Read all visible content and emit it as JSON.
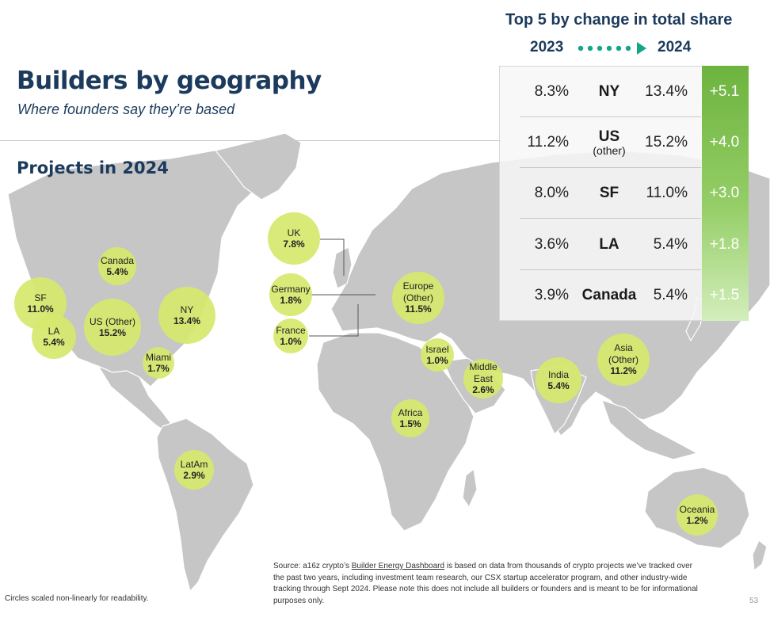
{
  "header": {
    "title": "Builders by geography",
    "subtitle": "Where founders say they’re based",
    "section_title": "Projects in 2024"
  },
  "colors": {
    "title": "#1b3a5c",
    "bubble": "#d6e86e",
    "land": "#c6c6c6",
    "change_top": "#6db33f",
    "change_bottom": "#d3eebc",
    "arrow": "#17a589"
  },
  "chart_data": [
    {
      "type": "bubble-map",
      "title": "Projects in 2024",
      "unit": "%",
      "points": [
        {
          "name": "Canada",
          "value": 5.4,
          "value_label": "5.4%"
        },
        {
          "name": "SF",
          "value": 11.0,
          "value_label": "11.0%"
        },
        {
          "name": "LA",
          "value": 5.4,
          "value_label": "5.4%"
        },
        {
          "name": "US (Other)",
          "value": 15.2,
          "value_label": "15.2%"
        },
        {
          "name": "NY",
          "value": 13.4,
          "value_label": "13.4%"
        },
        {
          "name": "Miami",
          "value": 1.7,
          "value_label": "1.7%"
        },
        {
          "name": "UK",
          "value": 7.8,
          "value_label": "7.8%"
        },
        {
          "name": "Germany",
          "value": 1.8,
          "value_label": "1.8%"
        },
        {
          "name": "France",
          "value": 1.0,
          "value_label": "1.0%"
        },
        {
          "name": "Europe (Other)",
          "value": 11.5,
          "value_label": "11.5%"
        },
        {
          "name": "Israel",
          "value": 1.0,
          "value_label": "1.0%"
        },
        {
          "name": "Middle East",
          "value": 2.6,
          "value_label": "2.6%"
        },
        {
          "name": "India",
          "value": 5.4,
          "value_label": "5.4%"
        },
        {
          "name": "Asia (Other)",
          "value": 11.2,
          "value_label": "11.2%"
        },
        {
          "name": "Africa",
          "value": 1.5,
          "value_label": "1.5%"
        },
        {
          "name": "LatAm",
          "value": 2.9,
          "value_label": "2.9%"
        },
        {
          "name": "Oceania",
          "value": 1.2,
          "value_label": "1.2%"
        }
      ]
    },
    {
      "type": "table",
      "title": "Top 5 by change in total share",
      "columns": [
        "2023",
        "2024"
      ],
      "rows": [
        {
          "city": "NY",
          "city_sub": "",
          "y2023": "8.3%",
          "y2024": "13.4%",
          "change": "+5.1"
        },
        {
          "city": "US",
          "city_sub": "(other)",
          "y2023": "11.2%",
          "y2024": "15.2%",
          "change": "+4.0"
        },
        {
          "city": "SF",
          "city_sub": "",
          "y2023": "8.0%",
          "y2024": "11.0%",
          "change": "+3.0"
        },
        {
          "city": "LA",
          "city_sub": "",
          "y2023": "3.6%",
          "y2024": "5.4%",
          "change": "+1.8"
        },
        {
          "city": "Canada",
          "city_sub": "",
          "y2023": "3.9%",
          "y2024": "5.4%",
          "change": "+1.5"
        }
      ]
    }
  ],
  "footer": {
    "note": "Circles scaled non-linearly for readability.",
    "source_prefix": "Source: a16z crypto’s ",
    "source_link": "Builder Energy Dashboard",
    "source_rest": " is based on data from thousands of crypto projects we’ve tracked over the past two years, including investment team research, our CSX startup accelerator program, and other industry-wide tracking through Sept 2024. Please note this does not include all builders or founders and is meant to be for informational purposes only.",
    "page": "53"
  }
}
